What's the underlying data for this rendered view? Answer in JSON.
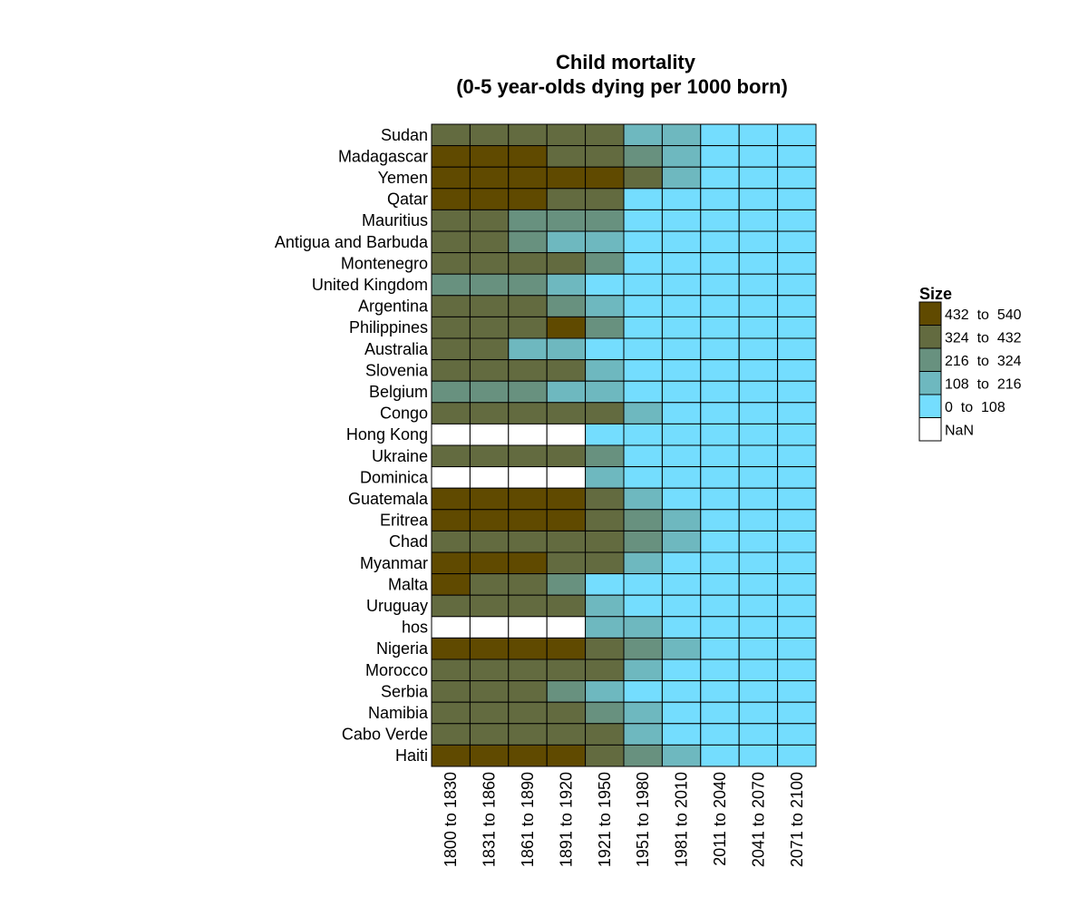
{
  "chart_data": {
    "type": "heatmap",
    "title": "Child mortality",
    "subtitle": "(0-5 year-olds dying per 1000 born)",
    "columns": [
      "1800 to 1830",
      "1831 to 1860",
      "1861 to 1890",
      "1891 to 1920",
      "1921 to 1950",
      "1951 to 1980",
      "1981 to 2010",
      "2011 to 2040",
      "2041 to 2070",
      "2071 to 2100"
    ],
    "rows": [
      "Sudan",
      "Madagascar",
      "Yemen",
      "Qatar",
      "Mauritius",
      "Antigua and Barbuda",
      "Montenegro",
      "United Kingdom",
      "Argentina",
      "Philippines",
      "Australia",
      "Slovenia",
      "Belgium",
      "Congo",
      "Hong Kong",
      "Ukraine",
      "Dominica",
      "Guatemala",
      "Eritrea",
      "Chad",
      "Myanmar",
      "Malta",
      "Uruguay",
      "hos",
      "Nigeria",
      "Morocco",
      "Serbia",
      "Namibia",
      "Cabo Verde",
      "Haiti"
    ],
    "bins": [
      {
        "label": "432  to  540",
        "color": "#604a00"
      },
      {
        "label": "324  to  432",
        "color": "#636b40"
      },
      {
        "label": "216  to  324",
        "color": "#68917f"
      },
      {
        "label": "108  to  216",
        "color": "#6eb8bf"
      },
      {
        "label": "0  to  108",
        "color": "#74ddfe"
      },
      {
        "label": "NaN",
        "color": "#ffffff"
      }
    ],
    "bin_index_note": "cells: 0=432-540, 1=324-432, 2=216-324, 3=108-216, 4=0-108, 5=NaN",
    "cells": [
      [
        1,
        1,
        1,
        1,
        1,
        3,
        3,
        4,
        4,
        4
      ],
      [
        0,
        0,
        0,
        1,
        1,
        2,
        3,
        4,
        4,
        4
      ],
      [
        0,
        0,
        0,
        0,
        0,
        1,
        3,
        4,
        4,
        4
      ],
      [
        0,
        0,
        0,
        1,
        1,
        4,
        4,
        4,
        4,
        4
      ],
      [
        1,
        1,
        2,
        2,
        2,
        4,
        4,
        4,
        4,
        4
      ],
      [
        1,
        1,
        2,
        3,
        3,
        4,
        4,
        4,
        4,
        4
      ],
      [
        1,
        1,
        1,
        1,
        2,
        4,
        4,
        4,
        4,
        4
      ],
      [
        2,
        2,
        2,
        3,
        4,
        4,
        4,
        4,
        4,
        4
      ],
      [
        1,
        1,
        1,
        2,
        3,
        4,
        4,
        4,
        4,
        4
      ],
      [
        1,
        1,
        1,
        0,
        2,
        4,
        4,
        4,
        4,
        4
      ],
      [
        1,
        1,
        3,
        3,
        4,
        4,
        4,
        4,
        4,
        4
      ],
      [
        1,
        1,
        1,
        1,
        3,
        4,
        4,
        4,
        4,
        4
      ],
      [
        2,
        2,
        2,
        3,
        3,
        4,
        4,
        4,
        4,
        4
      ],
      [
        1,
        1,
        1,
        1,
        1,
        3,
        4,
        4,
        4,
        4
      ],
      [
        5,
        5,
        5,
        5,
        4,
        4,
        4,
        4,
        4,
        4
      ],
      [
        1,
        1,
        1,
        1,
        2,
        4,
        4,
        4,
        4,
        4
      ],
      [
        5,
        5,
        5,
        5,
        3,
        4,
        4,
        4,
        4,
        4
      ],
      [
        0,
        0,
        0,
        0,
        1,
        3,
        4,
        4,
        4,
        4
      ],
      [
        0,
        0,
        0,
        0,
        1,
        2,
        3,
        4,
        4,
        4
      ],
      [
        1,
        1,
        1,
        1,
        1,
        2,
        3,
        4,
        4,
        4
      ],
      [
        0,
        0,
        0,
        1,
        1,
        3,
        4,
        4,
        4,
        4
      ],
      [
        0,
        1,
        1,
        2,
        4,
        4,
        4,
        4,
        4,
        4
      ],
      [
        1,
        1,
        1,
        1,
        3,
        4,
        4,
        4,
        4,
        4
      ],
      [
        5,
        5,
        5,
        5,
        3,
        3,
        4,
        4,
        4,
        4
      ],
      [
        0,
        0,
        0,
        0,
        1,
        2,
        3,
        4,
        4,
        4
      ],
      [
        1,
        1,
        1,
        1,
        1,
        3,
        4,
        4,
        4,
        4
      ],
      [
        1,
        1,
        1,
        2,
        3,
        4,
        4,
        4,
        4,
        4
      ],
      [
        1,
        1,
        1,
        1,
        2,
        3,
        4,
        4,
        4,
        4
      ],
      [
        1,
        1,
        1,
        1,
        1,
        3,
        4,
        4,
        4,
        4
      ],
      [
        0,
        0,
        0,
        0,
        1,
        2,
        3,
        4,
        4,
        4
      ]
    ],
    "legend": {
      "title": "Size",
      "placement": "right"
    },
    "grid": false
  }
}
